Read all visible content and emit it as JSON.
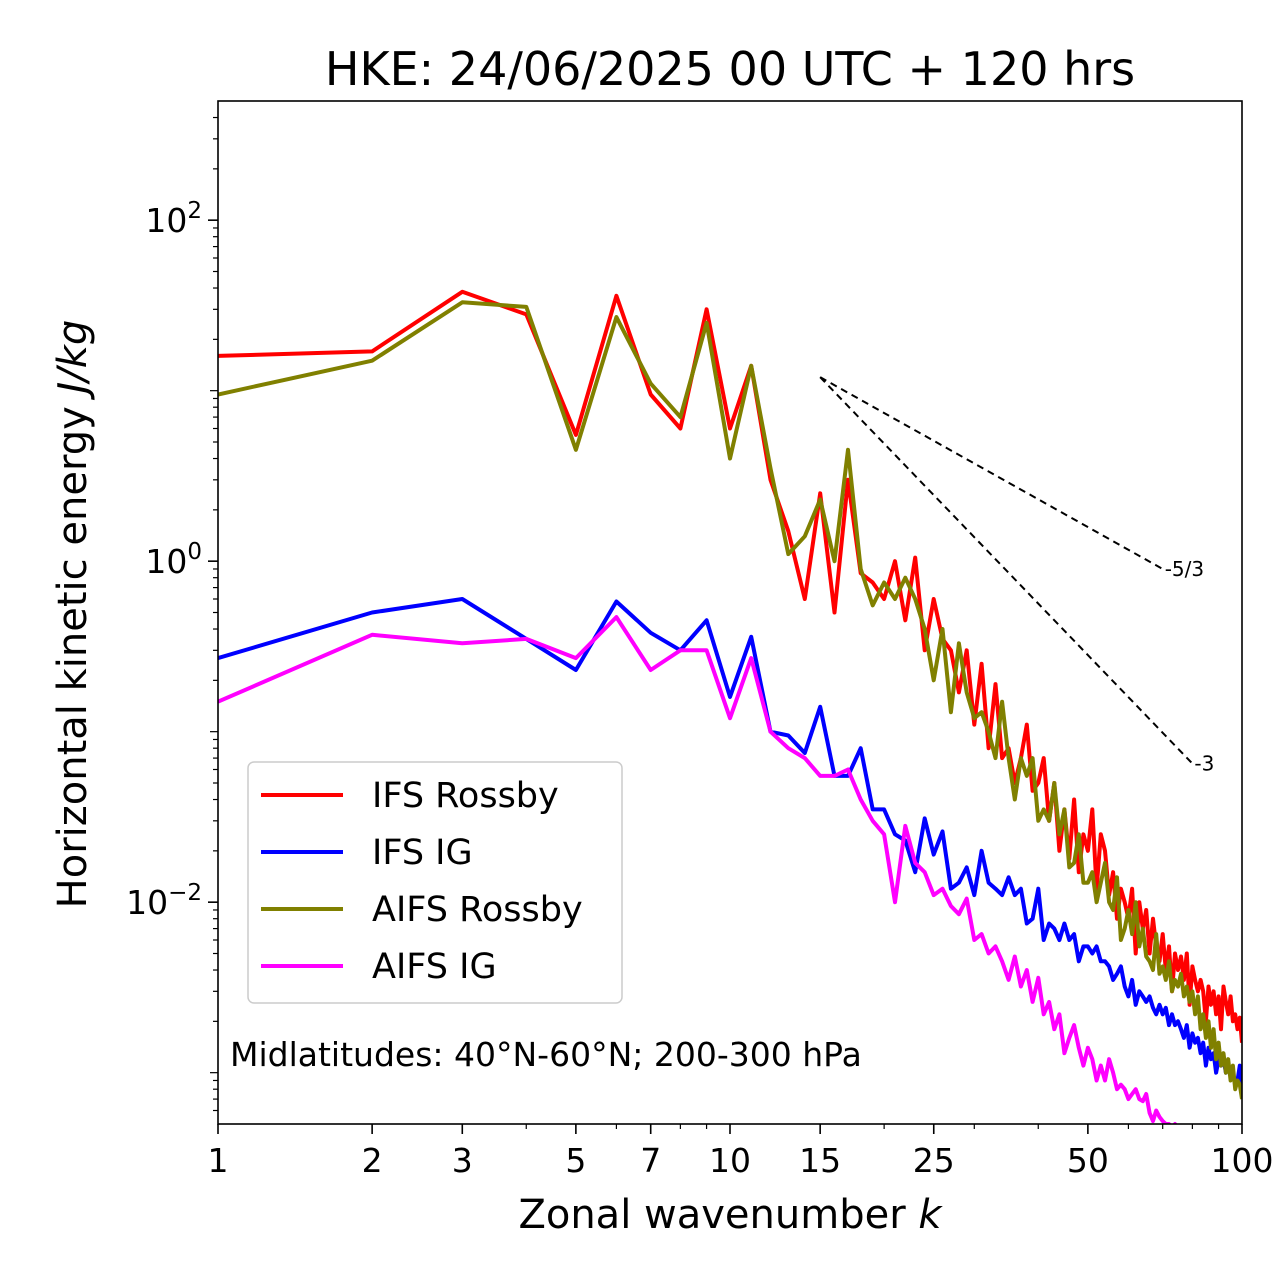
{
  "chart_data": {
    "type": "line",
    "title": "HKE: 24/06/2025 00 UTC + 120 hrs",
    "xlabel": "Zonal wavenumber",
    "xlabel_var": "k",
    "ylabel": "Horizontal kinetic energy",
    "ylabel_units": "J/kg",
    "xscale": "log",
    "yscale": "log",
    "xlim": [
      1,
      100
    ],
    "ylim": [
      0.0005,
      500
    ],
    "x_ticks": [
      {
        "v": 1,
        "label": "1"
      },
      {
        "v": 2,
        "label": "2"
      },
      {
        "v": 3,
        "label": "3"
      },
      {
        "v": 5,
        "label": "5"
      },
      {
        "v": 7,
        "label": "7"
      },
      {
        "v": 10,
        "label": "10"
      },
      {
        "v": 15,
        "label": "15"
      },
      {
        "v": 25,
        "label": "25"
      },
      {
        "v": 50,
        "label": "50"
      },
      {
        "v": 100,
        "label": "100"
      }
    ],
    "y_ticks": [
      {
        "v": 100,
        "base": "10",
        "exp": "2"
      },
      {
        "v": 1,
        "base": "10",
        "exp": "0"
      },
      {
        "v": 0.01,
        "base": "10",
        "exp": "−2"
      }
    ],
    "annotation": "Midlatitudes: 40°N-60°N; 200-300 hPa",
    "reference_lines": [
      {
        "label": "-5/3",
        "x": [
          15,
          70
        ],
        "y": [
          12,
          0.9
        ]
      },
      {
        "label": "-3",
        "x": [
          15,
          80
        ],
        "y": [
          12,
          0.065
        ]
      }
    ],
    "legend_position": "lower-left",
    "series": [
      {
        "name": "IFS Rossby",
        "color": "#ff0000",
        "x": [
          1,
          2,
          3,
          4,
          5,
          6,
          7,
          8,
          9,
          10,
          11,
          12,
          13,
          14,
          15,
          16,
          17,
          18,
          19,
          20,
          21,
          22,
          23,
          24,
          25,
          26,
          27,
          28,
          29,
          30,
          31,
          32,
          33,
          34,
          35,
          36,
          37,
          38,
          39,
          40,
          41,
          42,
          43,
          44,
          45,
          46,
          47,
          48,
          49,
          50,
          51,
          52,
          53,
          54,
          55,
          56,
          57,
          58,
          59,
          60,
          61,
          62,
          63,
          64,
          65,
          66,
          67,
          68,
          69,
          70,
          71,
          72,
          73,
          74,
          75,
          76,
          77,
          78,
          79,
          80,
          81,
          82,
          83,
          84,
          85,
          86,
          87,
          88,
          89,
          90,
          91,
          92,
          93,
          94,
          95,
          96,
          97,
          98,
          99,
          100
        ],
        "y": [
          16,
          17,
          38,
          28,
          5.5,
          36,
          9.5,
          6,
          30,
          6,
          14,
          3,
          1.5,
          0.6,
          2.5,
          0.5,
          3.0,
          0.85,
          0.75,
          0.6,
          1.0,
          0.45,
          1.05,
          0.3,
          0.6,
          0.35,
          0.3,
          0.17,
          0.3,
          0.11,
          0.25,
          0.08,
          0.19,
          0.07,
          0.08,
          0.05,
          0.07,
          0.11,
          0.045,
          0.05,
          0.07,
          0.03,
          0.05,
          0.02,
          0.035,
          0.018,
          0.04,
          0.015,
          0.025,
          0.02,
          0.035,
          0.012,
          0.025,
          0.02,
          0.011,
          0.015,
          0.008,
          0.012,
          0.01,
          0.008,
          0.012,
          0.005,
          0.01,
          0.007,
          0.009,
          0.005,
          0.008,
          0.0055,
          0.0045,
          0.0065,
          0.004,
          0.0055,
          0.003,
          0.005,
          0.004,
          0.0048,
          0.0035,
          0.005,
          0.0025,
          0.0042,
          0.0035,
          0.003,
          0.0035,
          0.003,
          0.002,
          0.0032,
          0.0025,
          0.003,
          0.0022,
          0.0028,
          0.0018,
          0.0032,
          0.0026,
          0.0022,
          0.0028,
          0.002,
          0.0022,
          0.0018,
          0.0021,
          0.0015
        ]
      },
      {
        "name": "IFS IG",
        "color": "#0000ff",
        "x": [
          1,
          2,
          3,
          4,
          5,
          6,
          7,
          8,
          9,
          10,
          11,
          12,
          13,
          14,
          15,
          16,
          17,
          18,
          19,
          20,
          21,
          22,
          23,
          24,
          25,
          26,
          27,
          28,
          29,
          30,
          31,
          32,
          33,
          34,
          35,
          36,
          37,
          38,
          39,
          40,
          41,
          42,
          43,
          44,
          45,
          46,
          47,
          48,
          49,
          50,
          51,
          52,
          53,
          54,
          55,
          56,
          57,
          58,
          59,
          60,
          61,
          62,
          63,
          64,
          65,
          66,
          67,
          68,
          69,
          70,
          71,
          72,
          73,
          74,
          75,
          76,
          77,
          78,
          79,
          80,
          81,
          82,
          83,
          84,
          85,
          86,
          87,
          88,
          89,
          90,
          91,
          92,
          93,
          94,
          95,
          96,
          97,
          98,
          99,
          100
        ],
        "y": [
          0.27,
          0.5,
          0.6,
          0.35,
          0.23,
          0.58,
          0.38,
          0.3,
          0.45,
          0.16,
          0.36,
          0.1,
          0.095,
          0.075,
          0.14,
          0.055,
          0.055,
          0.08,
          0.035,
          0.035,
          0.025,
          0.023,
          0.015,
          0.031,
          0.019,
          0.026,
          0.012,
          0.013,
          0.016,
          0.011,
          0.02,
          0.013,
          0.012,
          0.011,
          0.014,
          0.011,
          0.012,
          0.0075,
          0.008,
          0.012,
          0.006,
          0.0075,
          0.007,
          0.006,
          0.0075,
          0.006,
          0.0065,
          0.0045,
          0.0055,
          0.0055,
          0.005,
          0.0055,
          0.0045,
          0.0045,
          0.0042,
          0.0035,
          0.0038,
          0.0042,
          0.0032,
          0.0028,
          0.0035,
          0.0025,
          0.003,
          0.0028,
          0.0026,
          0.0028,
          0.0024,
          0.0022,
          0.0025,
          0.0022,
          0.0024,
          0.0019,
          0.0022,
          0.0019,
          0.002,
          0.0018,
          0.0016,
          0.0019,
          0.0014,
          0.0017,
          0.0015,
          0.0016,
          0.0013,
          0.0015,
          0.0011,
          0.0014,
          0.0012,
          0.0013,
          0.001,
          0.0012,
          0.0011,
          0.0012,
          0.001,
          0.0011,
          0.00095,
          0.001,
          0.00085,
          0.0009,
          0.0011,
          0.0008
        ]
      },
      {
        "name": "AIFS Rossby",
        "color": "#808000",
        "x": [
          1,
          2,
          3,
          4,
          5,
          6,
          7,
          8,
          9,
          10,
          11,
          12,
          13,
          14,
          15,
          16,
          17,
          18,
          19,
          20,
          21,
          22,
          23,
          24,
          25,
          26,
          27,
          28,
          29,
          30,
          31,
          32,
          33,
          34,
          35,
          36,
          37,
          38,
          39,
          40,
          41,
          42,
          43,
          44,
          45,
          46,
          47,
          48,
          49,
          50,
          51,
          52,
          53,
          54,
          55,
          56,
          57,
          58,
          59,
          60,
          61,
          62,
          63,
          64,
          65,
          66,
          67,
          68,
          69,
          70,
          71,
          72,
          73,
          74,
          75,
          76,
          77,
          78,
          79,
          80,
          81,
          82,
          83,
          84,
          85,
          86,
          87,
          88,
          89,
          90,
          91,
          92,
          93,
          94,
          95,
          96,
          97,
          98,
          99,
          100
        ],
        "y": [
          9.5,
          15,
          33,
          31,
          4.5,
          27,
          11,
          7,
          25,
          4,
          14,
          3.5,
          1.1,
          1.4,
          2.3,
          1.0,
          4.5,
          0.9,
          0.55,
          0.75,
          0.6,
          0.8,
          0.6,
          0.4,
          0.2,
          0.4,
          0.13,
          0.33,
          0.17,
          0.12,
          0.13,
          0.1,
          0.07,
          0.15,
          0.07,
          0.04,
          0.07,
          0.055,
          0.07,
          0.03,
          0.035,
          0.03,
          0.05,
          0.025,
          0.035,
          0.016,
          0.017,
          0.025,
          0.013,
          0.013,
          0.015,
          0.01,
          0.013,
          0.017,
          0.01,
          0.009,
          0.014,
          0.006,
          0.007,
          0.009,
          0.0065,
          0.01,
          0.0055,
          0.007,
          0.0048,
          0.0045,
          0.004,
          0.0065,
          0.0038,
          0.0042,
          0.0035,
          0.0045,
          0.003,
          0.0035,
          0.0032,
          0.0038,
          0.0028,
          0.0032,
          0.0026,
          0.003,
          0.0022,
          0.0028,
          0.0018,
          0.0022,
          0.0016,
          0.002,
          0.0014,
          0.0018,
          0.0012,
          0.0015,
          0.0011,
          0.0013,
          0.001,
          0.0012,
          0.0009,
          0.0011,
          0.0008,
          0.0009,
          0.00085,
          0.0007
        ]
      },
      {
        "name": "AIFS IG",
        "color": "#ff00ff",
        "x": [
          1,
          2,
          3,
          4,
          5,
          6,
          7,
          8,
          9,
          10,
          11,
          12,
          13,
          14,
          15,
          16,
          17,
          18,
          19,
          20,
          21,
          22,
          23,
          24,
          25,
          26,
          27,
          28,
          29,
          30,
          31,
          32,
          33,
          34,
          35,
          36,
          37,
          38,
          39,
          40,
          41,
          42,
          43,
          44,
          45,
          46,
          47,
          48,
          49,
          50,
          51,
          52,
          53,
          54,
          55,
          56,
          57,
          58,
          59,
          60,
          61,
          62,
          63,
          64,
          65,
          66,
          67,
          68,
          69,
          70,
          71,
          72,
          73,
          74,
          75,
          76,
          77,
          78,
          79,
          80,
          81,
          82,
          83,
          84,
          85,
          86,
          87,
          88,
          89,
          90,
          91,
          92,
          93,
          94,
          95,
          96,
          97,
          98,
          99,
          100
        ],
        "y": [
          0.15,
          0.37,
          0.33,
          0.35,
          0.27,
          0.47,
          0.23,
          0.3,
          0.3,
          0.12,
          0.27,
          0.1,
          0.08,
          0.07,
          0.055,
          0.055,
          0.06,
          0.04,
          0.03,
          0.025,
          0.01,
          0.028,
          0.017,
          0.015,
          0.011,
          0.012,
          0.0095,
          0.0085,
          0.0105,
          0.006,
          0.0065,
          0.005,
          0.0055,
          0.0045,
          0.0035,
          0.0048,
          0.0032,
          0.004,
          0.0026,
          0.0036,
          0.0022,
          0.0026,
          0.0018,
          0.0022,
          0.0013,
          0.0016,
          0.0019,
          0.0014,
          0.0011,
          0.0014,
          0.0012,
          0.0009,
          0.0011,
          0.0009,
          0.0012,
          0.001,
          0.0008,
          0.00085,
          0.0008,
          0.0007,
          0.00075,
          0.0008,
          0.0007,
          0.00068,
          0.00075,
          0.00058,
          0.00052,
          0.0006,
          0.00055,
          0.00052,
          0.0005,
          0.0005,
          0.00048,
          0.0005,
          0.00047,
          0.00049,
          0.00045,
          0.00048,
          0.00044,
          0.00046,
          0.00043,
          0.00045,
          0.00042,
          0.00044,
          0.00041,
          0.00043,
          0.0004,
          0.00042,
          0.0004,
          0.00041,
          0.00039,
          0.0004,
          0.00038,
          0.00039,
          0.00037,
          0.00038,
          0.00036,
          0.00037,
          0.00035,
          0.00036
        ]
      }
    ]
  }
}
